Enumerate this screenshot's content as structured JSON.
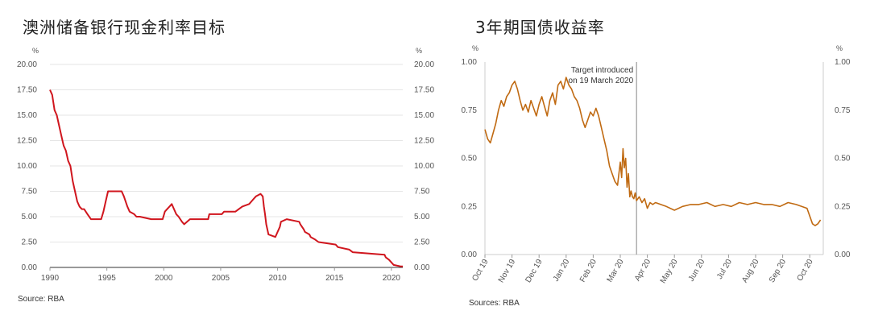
{
  "chart_data": [
    {
      "type": "line",
      "title": "澳洲储备银行现金利率目标",
      "source": "Source: RBA",
      "unit_left": "%",
      "unit_right": "%",
      "ylim": [
        0,
        20
      ],
      "y_ticks": [
        "0.00",
        "2.50",
        "5.00",
        "7.50",
        "10.00",
        "12.50",
        "15.00",
        "17.50",
        "20.00"
      ],
      "xlim": [
        1990,
        2021
      ],
      "x_ticks": [
        "1990",
        "1995",
        "2000",
        "2005",
        "2010",
        "2015",
        "2020"
      ],
      "series_color": "#d0161e",
      "series": [
        {
          "x": [
            1990.0,
            1990.2,
            1990.4,
            1990.6,
            1990.8,
            1991.0,
            1991.2,
            1991.4,
            1991.6,
            1991.8,
            1992.0,
            1992.2,
            1992.4,
            1992.6,
            1992.8,
            1993.0,
            1993.3,
            1993.6,
            1994.0,
            1994.5,
            1994.7,
            1994.9,
            1995.1,
            1996.3,
            1996.5,
            1996.8,
            1997.0,
            1997.4,
            1997.6,
            1997.9,
            1998.9,
            1999.9,
            2000.1,
            2000.3,
            2000.5,
            2000.7,
            2001.1,
            2001.3,
            2001.6,
            2001.8,
            2002.3,
            2002.5,
            2003.9,
            2004.0,
            2005.1,
            2005.3,
            2006.3,
            2006.6,
            2006.9,
            2007.5,
            2007.7,
            2007.9,
            2008.1,
            2008.5,
            2008.7,
            2008.8,
            2008.9,
            2009.0,
            2009.2,
            2009.8,
            2009.9,
            2010.0,
            2010.1,
            2010.2,
            2010.3,
            2010.8,
            2011.9,
            2012.0,
            2012.3,
            2012.4,
            2012.8,
            2012.9,
            2013.3,
            2013.6,
            2015.1,
            2015.3,
            2016.3,
            2016.6,
            2019.4,
            2019.5,
            2019.8,
            2020.2,
            2020.8,
            2021.0
          ],
          "y": [
            17.5,
            17.0,
            15.5,
            15.0,
            14.0,
            13.0,
            12.0,
            11.5,
            10.5,
            10.0,
            8.5,
            7.5,
            6.5,
            6.0,
            5.75,
            5.75,
            5.25,
            4.75,
            4.75,
            4.75,
            5.5,
            6.5,
            7.5,
            7.5,
            7.0,
            6.0,
            5.5,
            5.25,
            5.0,
            5.0,
            4.75,
            4.75,
            5.5,
            5.75,
            6.0,
            6.25,
            5.25,
            5.0,
            4.5,
            4.25,
            4.75,
            4.75,
            4.75,
            5.25,
            5.25,
            5.5,
            5.5,
            5.75,
            6.0,
            6.25,
            6.5,
            6.75,
            7.0,
            7.25,
            7.0,
            6.0,
            5.25,
            4.25,
            3.25,
            3.0,
            3.25,
            3.5,
            3.75,
            4.0,
            4.5,
            4.75,
            4.5,
            4.25,
            3.75,
            3.5,
            3.25,
            3.0,
            2.75,
            2.5,
            2.25,
            2.0,
            1.75,
            1.5,
            1.25,
            1.0,
            0.75,
            0.25,
            0.1,
            0.1
          ]
        }
      ]
    },
    {
      "type": "line",
      "title": "3年期国债收益率",
      "source": "Sources: RBA",
      "unit_left": "%",
      "unit_right": "%",
      "ylim": [
        0,
        1
      ],
      "y_ticks": [
        "0.00",
        "0.25",
        "0.50",
        "0.75",
        "1.00"
      ],
      "xlim": [
        0,
        12.5
      ],
      "x_ticks": [
        "Oct 19",
        "Nov 19",
        "Dec 19",
        "Jan 20",
        "Feb 20",
        "Mar 20",
        "Apr 20",
        "May 20",
        "Jun 20",
        "Jul 20",
        "Aug 20",
        "Sep 20",
        "Oct 20"
      ],
      "annotation": {
        "text_line1": "Target introduced",
        "text_line2": "on 19 March 2020",
        "x": 5.6
      },
      "series_color": "#c06a12",
      "series": [
        {
          "x": [
            0.0,
            0.1,
            0.2,
            0.3,
            0.4,
            0.5,
            0.6,
            0.7,
            0.8,
            0.9,
            1.0,
            1.1,
            1.2,
            1.3,
            1.4,
            1.5,
            1.6,
            1.7,
            1.8,
            1.9,
            2.0,
            2.1,
            2.2,
            2.3,
            2.4,
            2.5,
            2.6,
            2.7,
            2.8,
            2.9,
            3.0,
            3.1,
            3.2,
            3.3,
            3.4,
            3.5,
            3.6,
            3.7,
            3.8,
            3.9,
            4.0,
            4.1,
            4.2,
            4.3,
            4.4,
            4.5,
            4.6,
            4.7,
            4.8,
            4.9,
            5.0,
            5.05,
            5.1,
            5.15,
            5.2,
            5.25,
            5.3,
            5.35,
            5.4,
            5.45,
            5.5,
            5.55,
            5.6,
            5.7,
            5.8,
            5.9,
            6.0,
            6.1,
            6.2,
            6.3,
            6.5,
            6.7,
            7.0,
            7.3,
            7.6,
            7.9,
            8.2,
            8.5,
            8.8,
            9.1,
            9.4,
            9.7,
            10.0,
            10.3,
            10.6,
            10.9,
            11.2,
            11.5,
            11.7,
            11.9,
            12.0,
            12.1,
            12.2,
            12.3,
            12.4
          ],
          "y": [
            0.65,
            0.6,
            0.58,
            0.63,
            0.68,
            0.75,
            0.8,
            0.77,
            0.82,
            0.84,
            0.88,
            0.9,
            0.86,
            0.8,
            0.75,
            0.78,
            0.74,
            0.8,
            0.76,
            0.72,
            0.78,
            0.82,
            0.77,
            0.72,
            0.8,
            0.84,
            0.78,
            0.88,
            0.9,
            0.86,
            0.92,
            0.88,
            0.86,
            0.82,
            0.8,
            0.76,
            0.7,
            0.66,
            0.7,
            0.74,
            0.72,
            0.76,
            0.72,
            0.66,
            0.6,
            0.54,
            0.46,
            0.42,
            0.38,
            0.36,
            0.48,
            0.4,
            0.55,
            0.45,
            0.5,
            0.35,
            0.42,
            0.3,
            0.33,
            0.3,
            0.29,
            0.32,
            0.28,
            0.3,
            0.27,
            0.29,
            0.24,
            0.27,
            0.26,
            0.27,
            0.26,
            0.25,
            0.23,
            0.25,
            0.26,
            0.26,
            0.27,
            0.25,
            0.26,
            0.25,
            0.27,
            0.26,
            0.27,
            0.26,
            0.26,
            0.25,
            0.27,
            0.26,
            0.25,
            0.24,
            0.2,
            0.16,
            0.15,
            0.16,
            0.18
          ]
        }
      ]
    }
  ]
}
